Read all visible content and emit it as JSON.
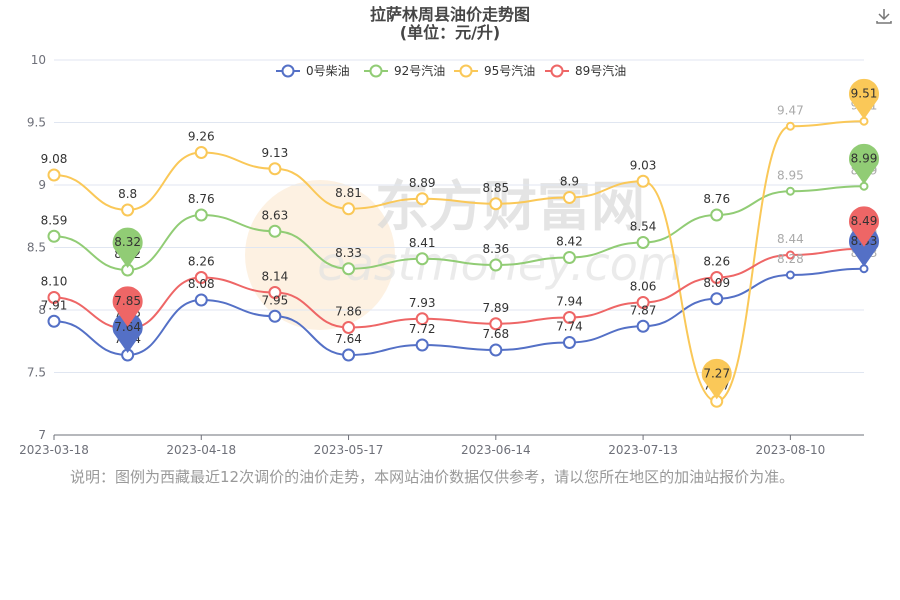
{
  "title_line1": "拉萨林周县油价走势图",
  "title_line2": "(单位：元/升)",
  "note": "说明：图例为西藏最近12次调价的油价走势，本网站油价数据仅供参考，请以您所在地区的加油站报价为准。",
  "watermark_cn": "东方财富网",
  "watermark_en": "eastmoney.com",
  "download_icon": "download-icon",
  "chart_data": {
    "type": "line",
    "x": [
      "2023-03-18",
      "2023-04-03",
      "2023-04-18",
      "2023-05-04",
      "2023-05-17",
      "2023-06-01",
      "2023-06-14",
      "2023-06-28",
      "2023-07-13",
      "2023-07-27",
      "2023-08-10",
      "2023-08-24"
    ],
    "x_tick_labels": [
      "2023-03-18",
      "2023-04-18",
      "2023-05-17",
      "2023-06-14",
      "2023-07-13",
      "2023-08-10"
    ],
    "y_ticks": [
      7,
      7.5,
      8,
      8.5,
      9,
      9.5,
      10
    ],
    "ylim": [
      7,
      10
    ],
    "legend_position": "top-center",
    "grid": true,
    "series": [
      {
        "name": "0号柴油",
        "color": "#5470c6",
        "values": [
          7.91,
          7.64,
          8.08,
          7.95,
          7.64,
          7.72,
          7.68,
          7.74,
          7.87,
          8.09,
          8.28,
          8.33
        ],
        "labels": [
          "7.91",
          "7.64",
          "8.08",
          "7.95",
          "7.64",
          "7.72",
          "7.68",
          "7.74",
          "7.87",
          "8.09",
          "8.28",
          "8.33"
        ],
        "markers": [
          {
            "index": 1,
            "label": "7.64"
          },
          {
            "index": 11,
            "label": "8.33"
          }
        ]
      },
      {
        "name": "92号汽油",
        "color": "#91cc75",
        "values": [
          8.59,
          8.32,
          8.76,
          8.63,
          8.33,
          8.41,
          8.36,
          8.42,
          8.54,
          8.76,
          8.95,
          8.99
        ],
        "labels": [
          "8.59",
          "8.32",
          "8.76",
          "8.63",
          "8.33",
          "8.41",
          "8.36",
          "8.42",
          "8.54",
          "8.76",
          "8.95",
          "8.99"
        ],
        "markers": [
          {
            "index": 1,
            "label": "8.32"
          },
          {
            "index": 11,
            "label": "8.99"
          }
        ]
      },
      {
        "name": "95号汽油",
        "color": "#fac858",
        "values": [
          9.08,
          8.8,
          9.26,
          9.13,
          8.81,
          8.89,
          8.85,
          8.9,
          9.03,
          7.27,
          9.47,
          9.51
        ],
        "labels": [
          "9.08",
          "8.8",
          "9.26",
          "9.13",
          "8.81",
          "8.89",
          "8.85",
          "8.9",
          "9.03",
          "7.27",
          "9.47",
          "9.51"
        ],
        "markers": [
          {
            "index": 9,
            "label": "7.27"
          },
          {
            "index": 11,
            "label": "9.51"
          }
        ]
      },
      {
        "name": "89号汽油",
        "color": "#ee6666",
        "values": [
          8.1,
          7.85,
          8.26,
          8.14,
          7.86,
          7.93,
          7.89,
          7.94,
          8.06,
          8.26,
          8.44,
          8.49
        ],
        "labels": [
          "8.10",
          "7.85",
          "8.26",
          "8.14",
          "7.86",
          "7.93",
          "7.89",
          "7.94",
          "8.06",
          "8.26",
          "8.44",
          "8.49"
        ],
        "markers": [
          {
            "index": 1,
            "label": "7.85"
          },
          {
            "index": 11,
            "label": "8.49"
          }
        ]
      }
    ]
  }
}
